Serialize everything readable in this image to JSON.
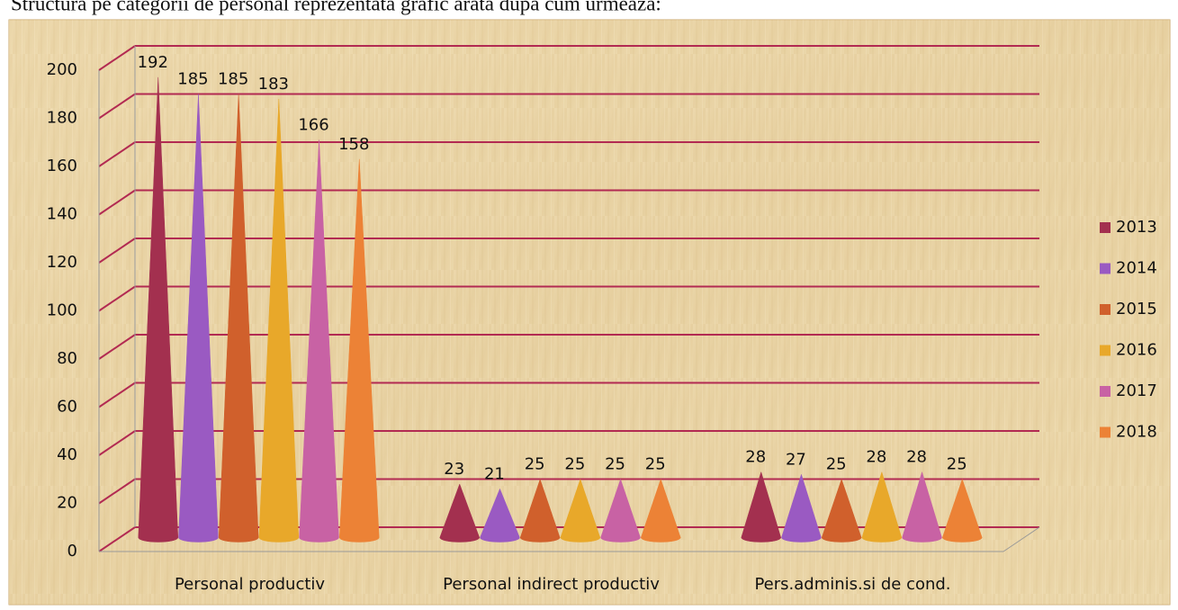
{
  "chart_data": {
    "type": "cone",
    "title": "Structura pe categorii de personal reprezentata grafic arata dupa cum urmeaza:",
    "categories": [
      "Personal productiv",
      "Personal indirect productiv",
      "Pers.adminis.si de cond."
    ],
    "series": [
      {
        "name": "2013",
        "color": "#a3304f",
        "values": [
          192,
          23,
          28
        ]
      },
      {
        "name": "2014",
        "color": "#9a5ac2",
        "values": [
          185,
          21,
          27
        ]
      },
      {
        "name": "2015",
        "color": "#d0602c",
        "values": [
          185,
          25,
          25
        ]
      },
      {
        "name": "2016",
        "color": "#e8a82a",
        "values": [
          183,
          25,
          28
        ]
      },
      {
        "name": "2017",
        "color": "#c862a4",
        "values": [
          166,
          25,
          28
        ]
      },
      {
        "name": "2018",
        "color": "#ec8236",
        "values": [
          158,
          25,
          25
        ]
      }
    ],
    "ylim": [
      0,
      200
    ],
    "yticks": [
      0,
      20,
      40,
      60,
      80,
      100,
      120,
      140,
      160,
      180,
      200
    ],
    "grid": true,
    "legend": "right"
  }
}
